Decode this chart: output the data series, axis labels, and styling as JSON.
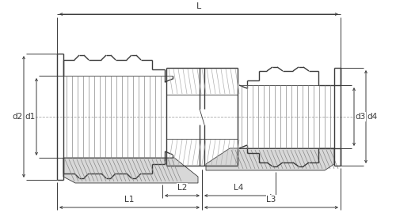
{
  "bg_color": "#ffffff",
  "line_color": "#3a3a3a",
  "lw_main": 1.0,
  "lw_thin": 0.6,
  "lw_dim": 0.7,
  "fig_width": 5.0,
  "fig_height": 2.84,
  "dpi": 100,
  "labels": {
    "L": "L",
    "L1": "L1",
    "L2": "L2",
    "L3": "L3",
    "L4": "L4",
    "d1": "d1",
    "d2": "d2",
    "d3": "d3",
    "d4": "d4"
  }
}
